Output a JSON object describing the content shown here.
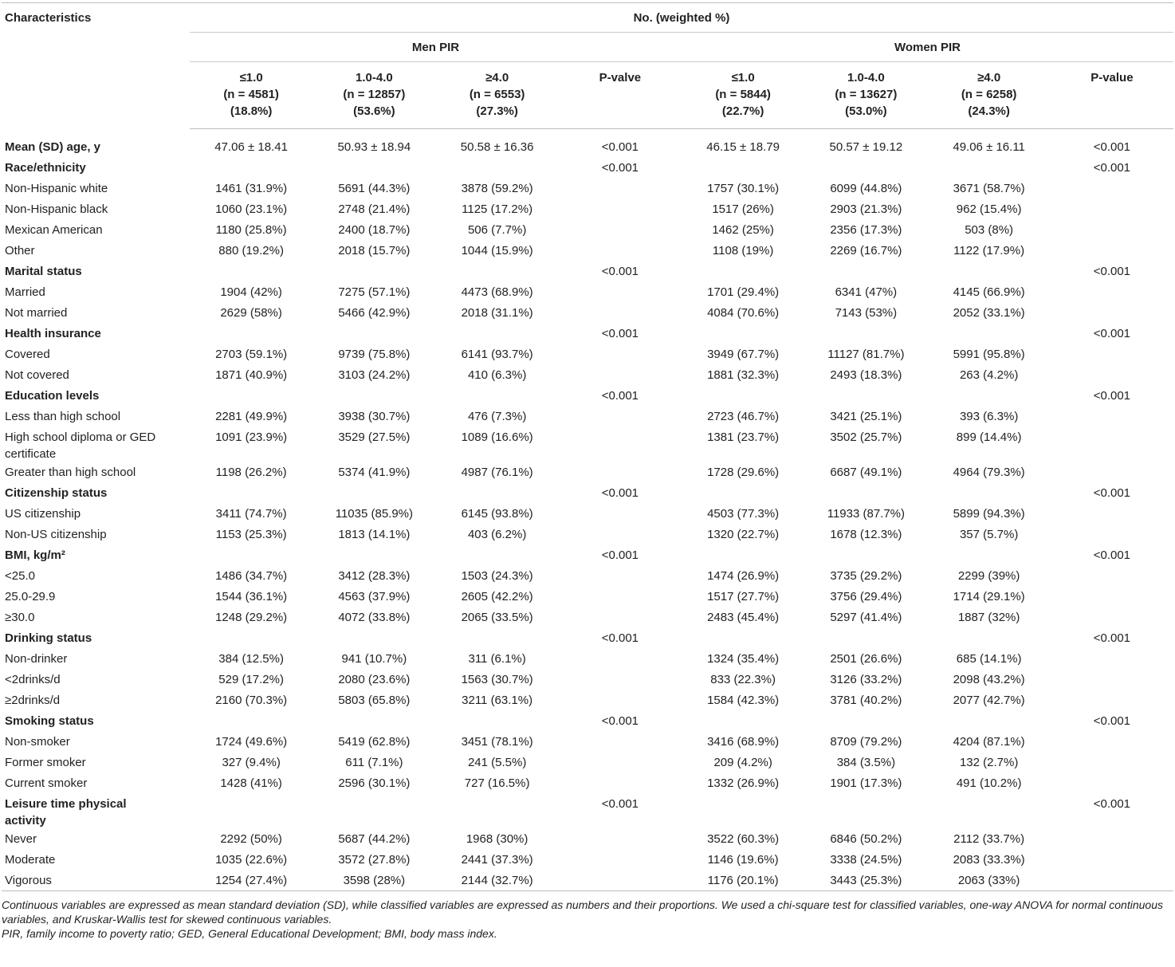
{
  "table": {
    "header": {
      "stub": "Characteristics",
      "spanner": "No. (weighted %)",
      "men": {
        "title": "Men PIR",
        "columns": [
          {
            "label": "≤1.0",
            "n": "(n = 4581)",
            "pct": "(18.8%)"
          },
          {
            "label": "1.0-4.0",
            "n": "(n = 12857)",
            "pct": "(53.6%)"
          },
          {
            "label": "≥4.0",
            "n": "(n = 6553)",
            "pct": "(27.3%)"
          }
        ],
        "p_label": "P-valve"
      },
      "women": {
        "title": "Women PIR",
        "columns": [
          {
            "label": "≤1.0",
            "n": "(n = 5844)",
            "pct": "(22.7%)"
          },
          {
            "label": "1.0-4.0",
            "n": "(n = 13627)",
            "pct": "(53.0%)"
          },
          {
            "label": "≥4.0",
            "n": "(n = 6258)",
            "pct": "(24.3%)"
          }
        ],
        "p_label": "P-value"
      }
    },
    "sections": [
      {
        "title": "Mean (SD) age, y",
        "men": [
          "47.06 ± 18.41",
          "50.93 ± 18.94",
          "50.58 ± 16.36"
        ],
        "men_p": "<0.001",
        "women": [
          "46.15 ± 18.79",
          "50.57 ± 19.12",
          "49.06 ± 16.11"
        ],
        "women_p": "<0.001",
        "rows": []
      },
      {
        "title": "Race/ethnicity",
        "men_p": "<0.001",
        "women_p": "<0.001",
        "rows": [
          {
            "label": "Non-Hispanic white",
            "men": [
              "1461 (31.9%)",
              "5691 (44.3%)",
              "3878 (59.2%)"
            ],
            "women": [
              "1757 (30.1%)",
              "6099 (44.8%)",
              "3671 (58.7%)"
            ]
          },
          {
            "label": "Non-Hispanic black",
            "men": [
              "1060 (23.1%)",
              "2748 (21.4%)",
              "1125 (17.2%)"
            ],
            "women": [
              "1517 (26%)",
              "2903 (21.3%)",
              "962 (15.4%)"
            ]
          },
          {
            "label": "Mexican American",
            "men": [
              "1180 (25.8%)",
              "2400 (18.7%)",
              "506 (7.7%)"
            ],
            "women": [
              "1462 (25%)",
              "2356 (17.3%)",
              "503 (8%)"
            ]
          },
          {
            "label": "Other",
            "men": [
              "880 (19.2%)",
              "2018 (15.7%)",
              "1044 (15.9%)"
            ],
            "women": [
              "1108 (19%)",
              "2269 (16.7%)",
              "1122 (17.9%)"
            ]
          }
        ]
      },
      {
        "title": "Marital status",
        "men_p": "<0.001",
        "women_p": "<0.001",
        "rows": [
          {
            "label": "Married",
            "men": [
              "1904 (42%)",
              "7275 (57.1%)",
              "4473 (68.9%)"
            ],
            "women": [
              "1701 (29.4%)",
              "6341 (47%)",
              "4145 (66.9%)"
            ]
          },
          {
            "label": "Not married",
            "men": [
              "2629 (58%)",
              "5466 (42.9%)",
              "2018 (31.1%)"
            ],
            "women": [
              "4084 (70.6%)",
              "7143 (53%)",
              "2052 (33.1%)"
            ]
          }
        ]
      },
      {
        "title": "Health insurance",
        "men_p": "<0.001",
        "women_p": "<0.001",
        "rows": [
          {
            "label": "Covered",
            "men": [
              "2703 (59.1%)",
              "9739 (75.8%)",
              "6141 (93.7%)"
            ],
            "women": [
              "3949 (67.7%)",
              "11127 (81.7%)",
              "5991 (95.8%)"
            ]
          },
          {
            "label": "Not covered",
            "men": [
              "1871 (40.9%)",
              "3103 (24.2%)",
              "410 (6.3%)"
            ],
            "women": [
              "1881 (32.3%)",
              "2493 (18.3%)",
              "263 (4.2%)"
            ]
          }
        ]
      },
      {
        "title": "Education levels",
        "men_p": "<0.001",
        "women_p": "<0.001",
        "rows": [
          {
            "label": "Less than high school",
            "men": [
              "2281 (49.9%)",
              "3938 (30.7%)",
              "476 (7.3%)"
            ],
            "women": [
              "2723 (46.7%)",
              "3421 (25.1%)",
              "393 (6.3%)"
            ]
          },
          {
            "label": "High school diploma or GED certificate",
            "men": [
              "1091 (23.9%)",
              "3529 (27.5%)",
              "1089 (16.6%)"
            ],
            "women": [
              "1381 (23.7%)",
              "3502 (25.7%)",
              "899 (14.4%)"
            ]
          },
          {
            "label": "Greater than high school",
            "men": [
              "1198 (26.2%)",
              "5374 (41.9%)",
              "4987 (76.1%)"
            ],
            "women": [
              "1728 (29.6%)",
              "6687 (49.1%)",
              "4964 (79.3%)"
            ]
          }
        ]
      },
      {
        "title": "Citizenship status",
        "men_p": "<0.001",
        "women_p": "<0.001",
        "rows": [
          {
            "label": "US citizenship",
            "men": [
              "3411 (74.7%)",
              "11035 (85.9%)",
              "6145 (93.8%)"
            ],
            "women": [
              "4503 (77.3%)",
              "11933 (87.7%)",
              "5899 (94.3%)"
            ]
          },
          {
            "label": "Non-US citizenship",
            "men": [
              "1153 (25.3%)",
              "1813 (14.1%)",
              "403 (6.2%)"
            ],
            "women": [
              "1320 (22.7%)",
              "1678 (12.3%)",
              "357 (5.7%)"
            ]
          }
        ]
      },
      {
        "title": "BMI, kg/m²",
        "men_p": "<0.001",
        "women_p": "<0.001",
        "rows": [
          {
            "label": "<25.0",
            "men": [
              "1486 (34.7%)",
              "3412 (28.3%)",
              "1503 (24.3%)"
            ],
            "women": [
              "1474 (26.9%)",
              "3735 (29.2%)",
              "2299 (39%)"
            ]
          },
          {
            "label": "25.0-29.9",
            "men": [
              "1544 (36.1%)",
              "4563 (37.9%)",
              "2605 (42.2%)"
            ],
            "women": [
              "1517 (27.7%)",
              "3756 (29.4%)",
              "1714 (29.1%)"
            ]
          },
          {
            "label": "≥30.0",
            "men": [
              "1248 (29.2%)",
              "4072 (33.8%)",
              "2065 (33.5%)"
            ],
            "women": [
              "2483 (45.4%)",
              "5297 (41.4%)",
              "1887 (32%)"
            ]
          }
        ]
      },
      {
        "title": "Drinking status",
        "men_p": "<0.001",
        "women_p": "<0.001",
        "rows": [
          {
            "label": "Non-drinker",
            "men": [
              "384 (12.5%)",
              "941 (10.7%)",
              "311 (6.1%)"
            ],
            "women": [
              "1324 (35.4%)",
              "2501 (26.6%)",
              "685 (14.1%)"
            ]
          },
          {
            "label": "<2drinks/d",
            "men": [
              "529 (17.2%)",
              "2080 (23.6%)",
              "1563 (30.7%)"
            ],
            "women": [
              "833 (22.3%)",
              "3126 (33.2%)",
              "2098 (43.2%)"
            ]
          },
          {
            "label": "≥2drinks/d",
            "men": [
              "2160 (70.3%)",
              "5803 (65.8%)",
              "3211 (63.1%)"
            ],
            "women": [
              "1584 (42.3%)",
              "3781 (40.2%)",
              "2077 (42.7%)"
            ]
          }
        ]
      },
      {
        "title": "Smoking status",
        "men_p": "<0.001",
        "women_p": "<0.001",
        "rows": [
          {
            "label": "Non-smoker",
            "men": [
              "1724 (49.6%)",
              "5419 (62.8%)",
              "3451 (78.1%)"
            ],
            "women": [
              "3416 (68.9%)",
              "8709 (79.2%)",
              "4204 (87.1%)"
            ]
          },
          {
            "label": "Former smoker",
            "men": [
              "327 (9.4%)",
              "611 (7.1%)",
              "241 (5.5%)"
            ],
            "women": [
              "209 (4.2%)",
              "384 (3.5%)",
              "132 (2.7%)"
            ]
          },
          {
            "label": "Current smoker",
            "men": [
              "1428 (41%)",
              "2596 (30.1%)",
              "727 (16.5%)"
            ],
            "women": [
              "1332 (26.9%)",
              "1901 (17.3%)",
              "491 (10.2%)"
            ]
          }
        ]
      },
      {
        "title": "Leisure time physical activity",
        "men_p": "<0.001",
        "women_p": "<0.001",
        "rows": [
          {
            "label": "Never",
            "men": [
              "2292 (50%)",
              "5687 (44.2%)",
              "1968 (30%)"
            ],
            "women": [
              "3522 (60.3%)",
              "6846 (50.2%)",
              "2112 (33.7%)"
            ]
          },
          {
            "label": "Moderate",
            "men": [
              "1035 (22.6%)",
              "3572 (27.8%)",
              "2441 (37.3%)"
            ],
            "women": [
              "1146 (19.6%)",
              "3338 (24.5%)",
              "2083 (33.3%)"
            ]
          },
          {
            "label": "Vigorous",
            "men": [
              "1254 (27.4%)",
              "3598 (28%)",
              "2144 (32.7%)"
            ],
            "women": [
              "1176 (20.1%)",
              "3443 (25.3%)",
              "2063 (33%)"
            ]
          }
        ]
      }
    ],
    "footnotes": [
      "Continuous variables are expressed as mean standard deviation (SD), while classified variables are expressed as numbers and their proportions. We used a chi-square test for classified variables, one-way ANOVA for normal continuous variables, and Kruskar-Wallis test for skewed continuous variables.",
      "PIR, family income to poverty ratio; GED, General Educational Development; BMI, body mass index."
    ]
  }
}
